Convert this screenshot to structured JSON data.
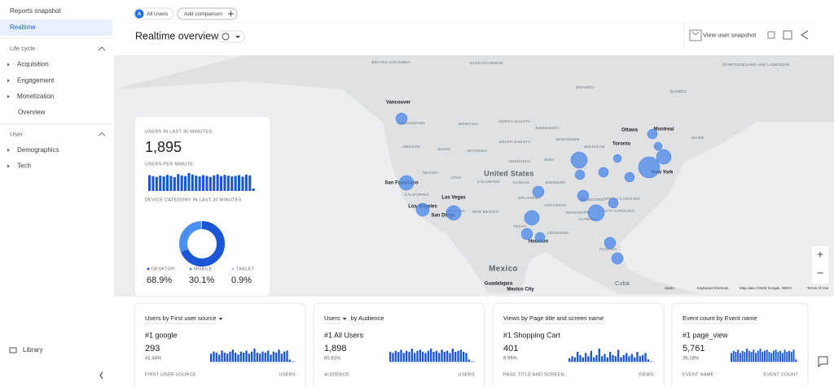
{
  "sidebar": {
    "top": [
      "Reports snapshot",
      "Realtime"
    ],
    "sections": [
      {
        "title": "Life cycle",
        "items": [
          "Acquisition",
          "Engagement",
          "Monetization",
          "Overview"
        ]
      },
      {
        "title": "User",
        "items": [
          "Demographics",
          "Tech"
        ]
      }
    ],
    "library": "Library"
  },
  "header": {
    "badge": "A",
    "audience": "All Users",
    "add_comparison": "Add comparison",
    "title": "Realtime overview",
    "snapshot": "View user snapshot"
  },
  "map": {
    "labels": [
      "BRITISH COLUMBIA",
      "SASKATCHEWAN",
      "NEWFOUNDLAND AND LABRADOR",
      "ONTARIO",
      "QUEBEC",
      "Vancouver",
      "WASHINGTON",
      "MONTANA",
      "NORTH DAKOTA",
      "MINNESOTA",
      "Ottawa",
      "Montreal",
      "OREGON",
      "IDAHO",
      "WYOMING",
      "SOUTH DAKOTA",
      "WISCONSIN",
      "MICHIGAN",
      "Toronto",
      "MAINE",
      "NEBRASKA",
      "IOWA",
      "United States",
      "NEVADA",
      "UTAH",
      "COLORADO",
      "KANSAS",
      "MISSOURI",
      "New York",
      "San Francisco",
      "CALIFORNIA",
      "Las Vegas",
      "OKLAHOMA",
      "ARKANSAS",
      "TENNESSEE",
      "NORTH CAROLINA",
      "Los Angeles",
      "San Diego",
      "ARIZONA",
      "NEW MEXICO",
      "MISSISSIPPI",
      "ALABAMA",
      "SOUTH CAROLINA",
      "TEXAS",
      "LOUISIANA",
      "Houston",
      "FLORIDA",
      "Mexico",
      "Guadalajara",
      "Mexico City",
      "Cuba",
      "Santo",
      "Keyboard shortcuts",
      "Map data ©2023 Google, INEGI",
      "Terms of Use"
    ]
  },
  "summary": {
    "users_title": "USERS IN LAST 30 MINUTES",
    "users": "1,895",
    "per_minute_title": "USERS PER MINUTE",
    "per_minute": [
      62,
      58,
      55,
      60,
      57,
      63,
      59,
      54,
      66,
      61,
      58,
      70,
      64,
      60,
      57,
      62,
      59,
      55,
      61,
      65,
      58,
      63,
      60,
      57,
      59,
      62,
      56,
      64,
      61,
      10
    ],
    "device_title": "DEVICE CATEGORY IN LAST 30 MINUTES",
    "devices": {
      "names": [
        "DESKTOP",
        "MOBILE",
        "TABLET"
      ],
      "values": [
        68.9,
        30.1,
        0.9
      ],
      "value_labels": [
        "68.9%",
        "30.1%",
        "0.9%"
      ],
      "colors": [
        "#1a56d6",
        "#4a90f0",
        "#a8c7fa"
      ]
    }
  },
  "cards": [
    {
      "title": "Users by First user source",
      "top": "#1 google",
      "value": "293",
      "share": "41.44%",
      "bars": [
        8,
        10,
        9,
        7,
        11,
        9,
        8,
        10,
        12,
        9,
        7,
        10,
        9,
        11,
        8,
        10,
        13,
        9,
        8,
        10,
        9,
        11,
        7,
        10,
        9,
        12,
        8,
        10,
        11,
        2
      ],
      "column": "FIRST USER SOURCE",
      "metric": "USERS"
    },
    {
      "title": "Users",
      "title_suffix": "by Audience",
      "top": "#1 All Users",
      "value": "1,898",
      "share": "60.81%",
      "bars": [
        9,
        8,
        10,
        9,
        11,
        8,
        10,
        9,
        12,
        8,
        10,
        11,
        9,
        8,
        10,
        12,
        9,
        10,
        8,
        11,
        9,
        10,
        8,
        12,
        9,
        10,
        11,
        9,
        8,
        2
      ],
      "column": "AUDIENCE",
      "metric": "USERS"
    },
    {
      "title": "Views by Page title and screen name",
      "top": "#1 Shopping Cart",
      "value": "401",
      "share": "6.96%",
      "bars": [
        3,
        5,
        4,
        9,
        6,
        4,
        8,
        5,
        10,
        4,
        6,
        12,
        5,
        7,
        4,
        9,
        6,
        5,
        11,
        4,
        6,
        8,
        5,
        7,
        4,
        9,
        5,
        6,
        8,
        2
      ],
      "column": "PAGE TITLE AND SCREEN...",
      "metric": "VIEWS"
    },
    {
      "title": "Event count by Event name",
      "top": "#1 page_view",
      "value": "5,761",
      "share": "36.18%",
      "bars": [
        8,
        10,
        9,
        11,
        8,
        10,
        9,
        12,
        10,
        9,
        11,
        8,
        10,
        12,
        9,
        10,
        11,
        9,
        8,
        10,
        11,
        9,
        10,
        8,
        11,
        9,
        10,
        9,
        11,
        2
      ],
      "column": "EVENT NAME",
      "metric": "EVENT COUNT"
    }
  ]
}
